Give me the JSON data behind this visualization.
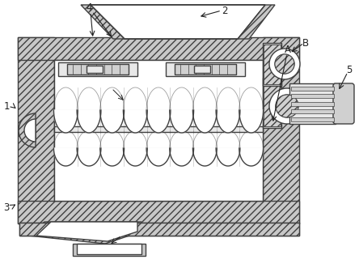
{
  "bg_color": "#ffffff",
  "lc": "#404040",
  "hatch_fc": "#c8c8c8",
  "white": "#ffffff",
  "light_gray": "#e8e8e8",
  "mid_gray": "#d0d0d0",
  "figsize": [
    4.44,
    3.31
  ],
  "dpi": 100
}
